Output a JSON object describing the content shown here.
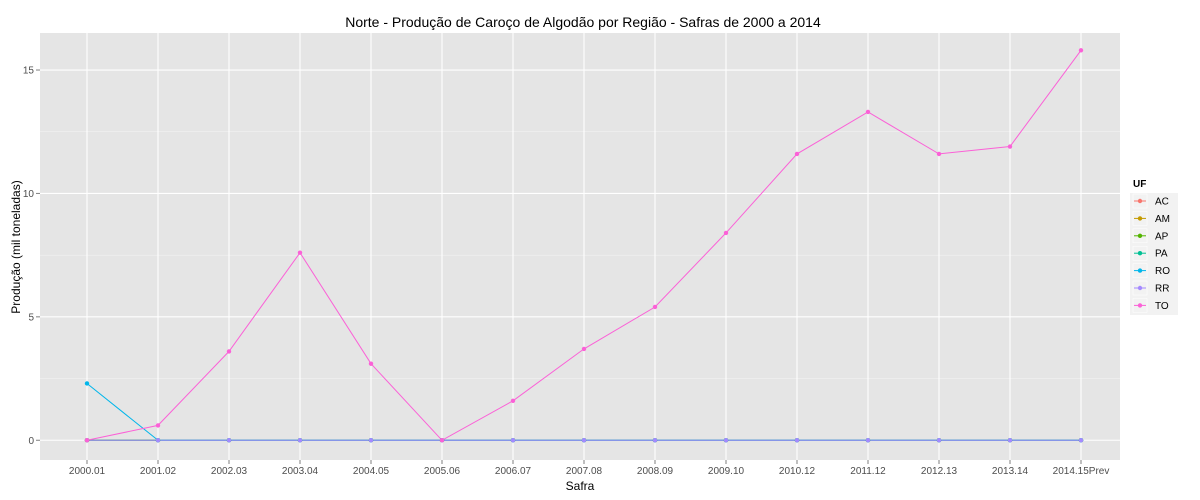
{
  "chart_data": {
    "type": "line",
    "title": "Norte  - Produção de Caroço de Algodão por Região - Safras de 2000 a 2014",
    "xlabel": "Safra",
    "ylabel": "Produção (mil toneladas)",
    "categories": [
      "2000.01",
      "2001.02",
      "2002.03",
      "2003.04",
      "2004.05",
      "2005.06",
      "2006.07",
      "2007.08",
      "2008.09",
      "2009.10",
      "2010.12",
      "2011.12",
      "2012.13",
      "2013.14",
      "2014.15Prev"
    ],
    "ylim": [
      -0.8,
      16.5
    ],
    "yticks": [
      0,
      5,
      10,
      15
    ],
    "grid": true,
    "legend_title": "UF",
    "legend_position": "right",
    "series": [
      {
        "name": "AC",
        "color": "#F8766D",
        "values": [
          0,
          0,
          0,
          0,
          0,
          0,
          0,
          0,
          0,
          0,
          0,
          0,
          0,
          0,
          0
        ]
      },
      {
        "name": "AM",
        "color": "#C49A00",
        "values": [
          0,
          0,
          0,
          0,
          0,
          0,
          0,
          0,
          0,
          0,
          0,
          0,
          0,
          0,
          0
        ]
      },
      {
        "name": "AP",
        "color": "#53B400",
        "values": [
          0,
          0,
          0,
          0,
          0,
          0,
          0,
          0,
          0,
          0,
          0,
          0,
          0,
          0,
          0
        ]
      },
      {
        "name": "PA",
        "color": "#00C094",
        "values": [
          0,
          0,
          0,
          0,
          0,
          0,
          0,
          0,
          0,
          0,
          0,
          0,
          0,
          0,
          0
        ]
      },
      {
        "name": "RO",
        "color": "#00B6EB",
        "values": [
          2.3,
          0,
          0,
          0,
          0,
          0,
          0,
          0,
          0,
          0,
          0,
          0,
          0,
          0,
          0
        ]
      },
      {
        "name": "RR",
        "color": "#A58AFF",
        "values": [
          0,
          0,
          0,
          0,
          0,
          0,
          0,
          0,
          0,
          0,
          0,
          0,
          0,
          0,
          0
        ]
      },
      {
        "name": "TO",
        "color": "#FB61D7",
        "values": [
          0,
          0.6,
          3.6,
          7.6,
          3.1,
          0,
          1.6,
          3.7,
          5.4,
          8.4,
          11.6,
          13.3,
          11.6,
          11.9,
          15.8
        ]
      }
    ]
  }
}
